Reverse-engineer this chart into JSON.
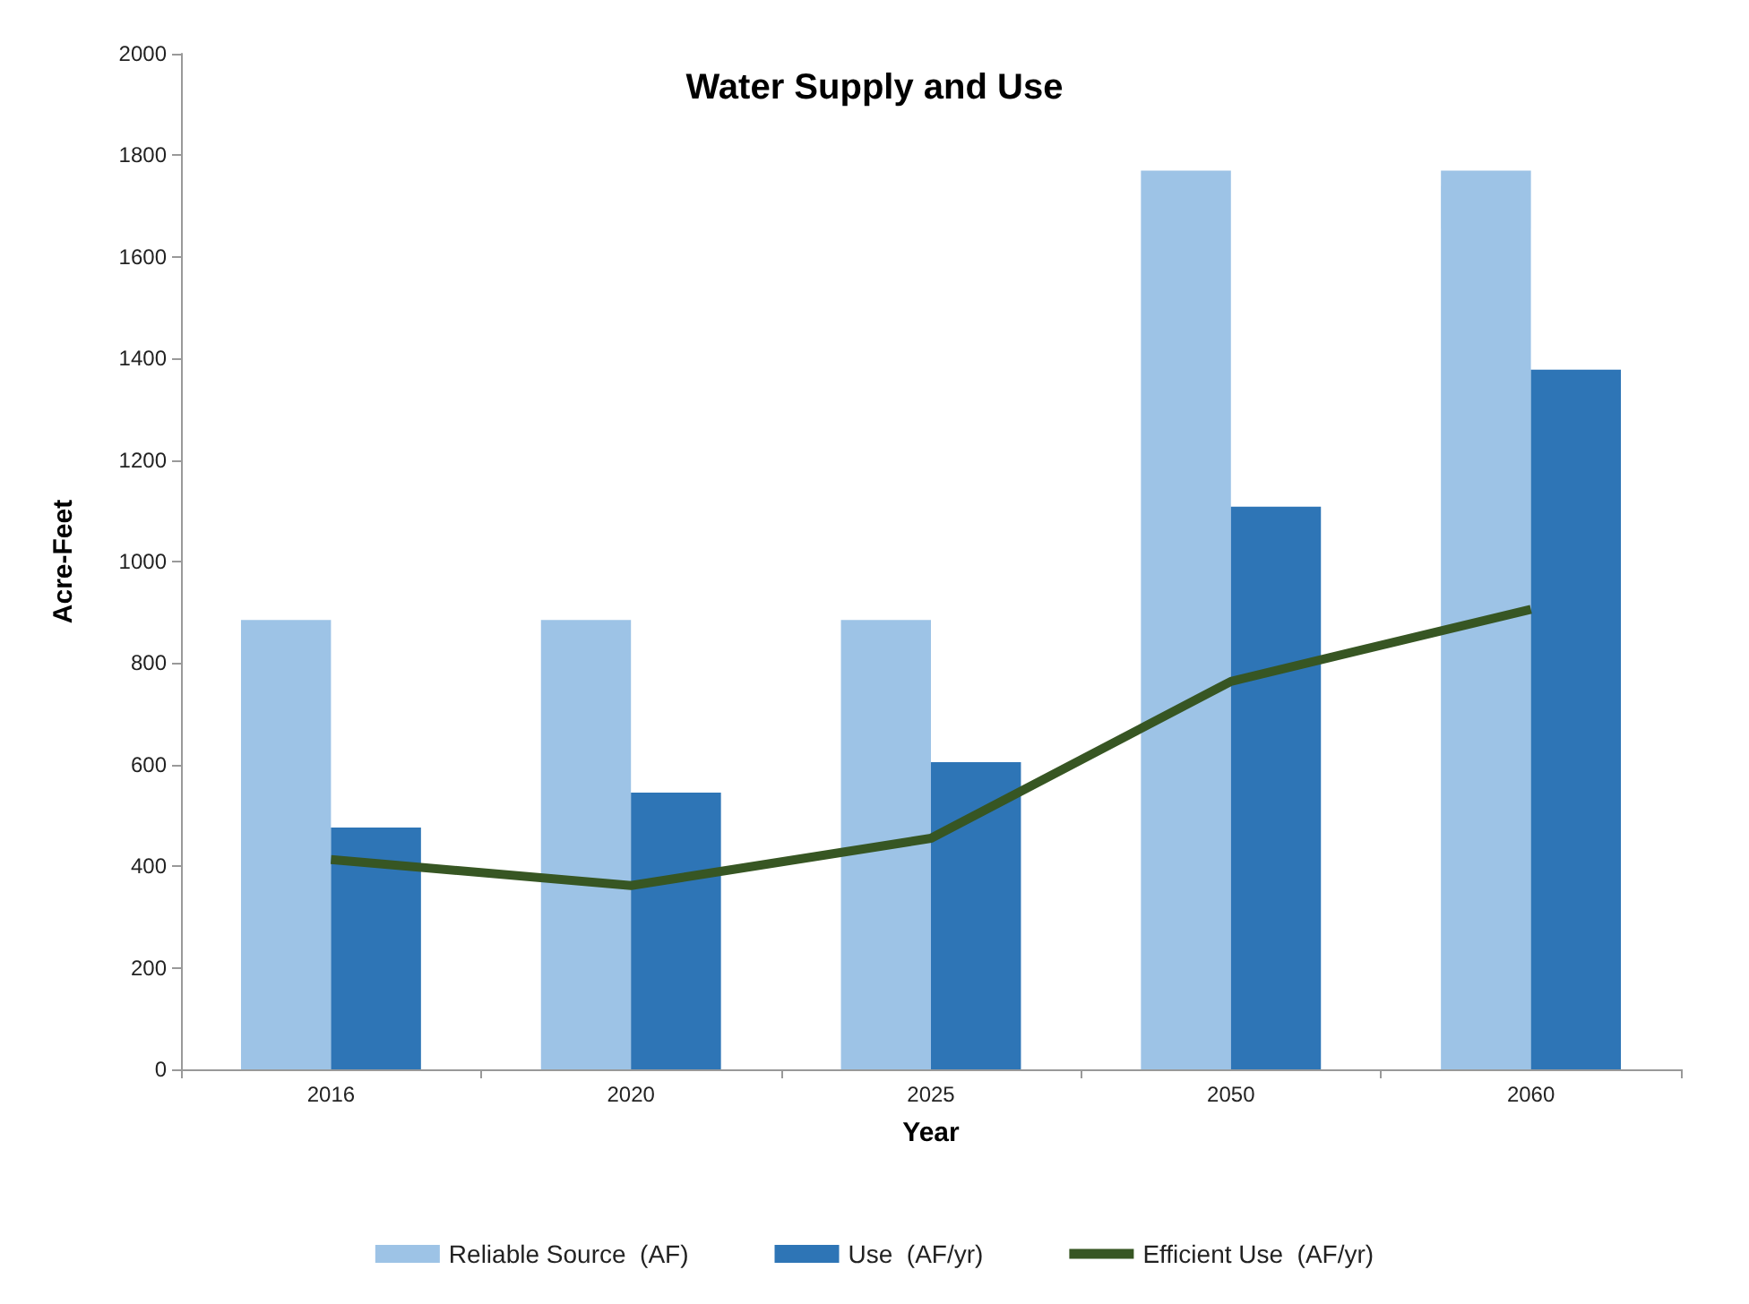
{
  "chart_data": {
    "type": "bar",
    "title": "Water Supply and Use",
    "xlabel": "Year",
    "ylabel": "Acre-Feet",
    "categories": [
      "2016",
      "2020",
      "2025",
      "2050",
      "2060"
    ],
    "series": [
      {
        "name": "Reliable Source  (AF)",
        "color": "#9dc3e6",
        "values": [
          885,
          885,
          885,
          1770,
          1770
        ]
      },
      {
        "name": "Use  (AF/yr)",
        "color": "#2e75b6",
        "values": [
          476,
          545,
          605,
          1108,
          1378
        ]
      },
      {
        "name": "Efficient Use  (AF/yr)",
        "type": "line",
        "color": "#375623",
        "values": [
          413,
          362,
          455,
          764,
          906
        ]
      }
    ],
    "ylim": [
      0,
      2000
    ],
    "yticks": [
      0,
      200,
      400,
      600,
      800,
      1000,
      1200,
      1400,
      1600,
      1800,
      2000
    ],
    "grid": false,
    "legend": "bottom",
    "marker": "none"
  }
}
